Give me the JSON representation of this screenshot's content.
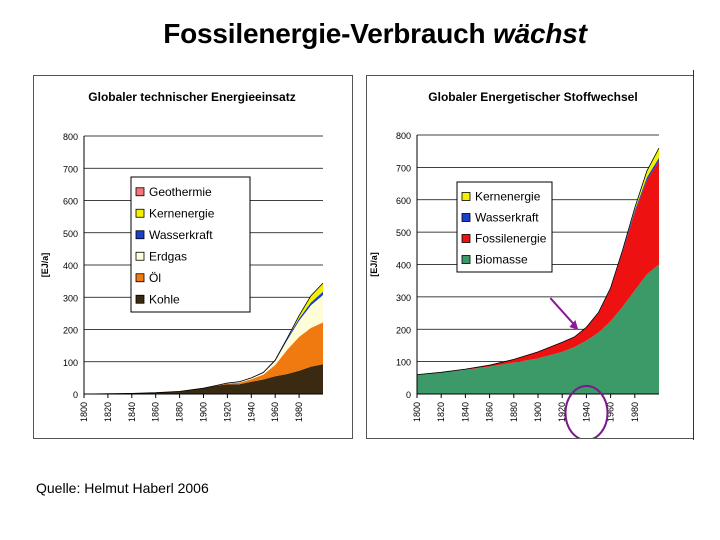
{
  "slide": {
    "title_main": "Fossilenergie-Verbrauch",
    "title_emph": "wächst",
    "source": "Quelle: Helmut Haberl 2006"
  },
  "chart_data": [
    {
      "type": "area",
      "stacked": true,
      "title": "Globaler technischer Energieeinsatz",
      "ylabel": "[EJ/a]",
      "xlabel": "",
      "ylim": [
        0,
        800
      ],
      "yticks": [
        0,
        100,
        200,
        300,
        400,
        500,
        600,
        700,
        800
      ],
      "xlim": [
        1800,
        2000
      ],
      "xticks": [
        1800,
        1820,
        1840,
        1860,
        1880,
        1900,
        1920,
        1940,
        1960,
        1980
      ],
      "grid": "horizontal",
      "legend_position": "upper-left",
      "x": [
        1800,
        1840,
        1860,
        1880,
        1900,
        1910,
        1920,
        1930,
        1940,
        1950,
        1960,
        1970,
        1980,
        1990,
        2000
      ],
      "series": [
        {
          "name": "Kohle",
          "color": "#3b2a12",
          "values": [
            0,
            2,
            4,
            8,
            18,
            25,
            30,
            30,
            38,
            45,
            55,
            62,
            72,
            85,
            92
          ]
        },
        {
          "name": "Öl",
          "color": "#f07a10",
          "values": [
            0,
            0,
            0,
            0,
            0,
            1,
            3,
            5,
            8,
            15,
            35,
            75,
            105,
            120,
            130
          ]
        },
        {
          "name": "Erdgas",
          "color": "#fffcd8",
          "values": [
            0,
            0,
            0,
            0,
            0,
            0,
            1,
            2,
            3,
            5,
            12,
            30,
            50,
            70,
            85
          ]
        },
        {
          "name": "Wasserkraft",
          "color": "#1a3fcc",
          "values": [
            0,
            0,
            0,
            0,
            0,
            0,
            0,
            1,
            1,
            2,
            3,
            5,
            7,
            9,
            10
          ]
        },
        {
          "name": "Kernenergie",
          "color": "#f2f200",
          "values": [
            0,
            0,
            0,
            0,
            0,
            0,
            0,
            0,
            0,
            0,
            0,
            1,
            8,
            20,
            25
          ]
        },
        {
          "name": "Geothermie",
          "color": "#f07878",
          "values": [
            0,
            0,
            0,
            0,
            0,
            0,
            0,
            0,
            0,
            0,
            0,
            0,
            1,
            1,
            2
          ]
        }
      ],
      "legend_order": [
        "Geothermie",
        "Kernenergie",
        "Wasserkraft",
        "Erdgas",
        "Öl",
        "Kohle"
      ]
    },
    {
      "type": "area",
      "stacked": true,
      "title": "Globaler Energetischer Stoffwechsel",
      "ylabel": "[EJ/a]",
      "xlabel": "",
      "ylim": [
        0,
        800
      ],
      "yticks": [
        0,
        100,
        200,
        300,
        400,
        500,
        600,
        700,
        800
      ],
      "xlim": [
        1800,
        2000
      ],
      "xticks": [
        1800,
        1820,
        1840,
        1860,
        1880,
        1900,
        1920,
        1940,
        1960,
        1980
      ],
      "grid": "horizontal",
      "legend_position": "upper-left",
      "x": [
        1800,
        1820,
        1840,
        1860,
        1880,
        1900,
        1920,
        1930,
        1940,
        1950,
        1960,
        1970,
        1980,
        1990,
        2000
      ],
      "series": [
        {
          "name": "Biomasse",
          "color": "#3b9a68",
          "values": [
            60,
            67,
            75,
            85,
            97,
            110,
            130,
            145,
            165,
            190,
            225,
            270,
            320,
            370,
            400
          ]
        },
        {
          "name": "Fossilenergie",
          "color": "#ee1111",
          "values": [
            0,
            0,
            2,
            4,
            10,
            20,
            30,
            30,
            40,
            60,
            100,
            170,
            240,
            290,
            320
          ]
        },
        {
          "name": "Wasserkraft",
          "color": "#1a3fcc",
          "values": [
            0,
            0,
            0,
            0,
            0,
            0,
            0,
            1,
            1,
            2,
            3,
            5,
            7,
            9,
            10
          ]
        },
        {
          "name": "Kernenergie",
          "color": "#f2f200",
          "values": [
            0,
            0,
            0,
            0,
            0,
            0,
            0,
            0,
            0,
            0,
            0,
            1,
            8,
            20,
            30
          ]
        }
      ],
      "legend_order": [
        "Kernenergie",
        "Wasserkraft",
        "Fossilenergie",
        "Biomasse"
      ],
      "annotations": [
        {
          "kind": "arrow",
          "color": "#8a1a9a",
          "points_to_x": 1935
        },
        {
          "kind": "circle",
          "color": "#7a1a8a",
          "around_x": 1950
        }
      ]
    }
  ]
}
